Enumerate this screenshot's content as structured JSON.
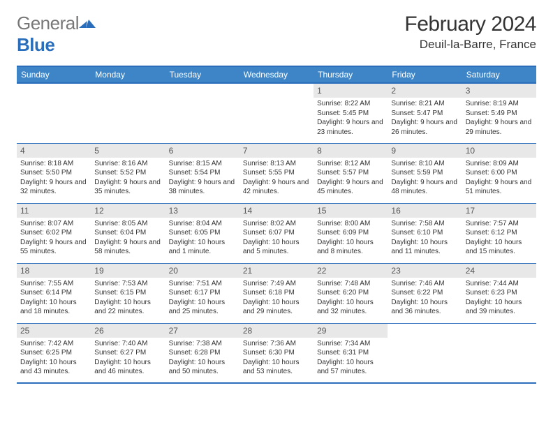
{
  "brand": {
    "gray": "General",
    "blue": "Blue"
  },
  "title": "February 2024",
  "location": "Deuil-la-Barre, France",
  "colors": {
    "header_bg": "#3d85c6",
    "header_border": "#2a6ebb",
    "daynum_bg": "#e8e8e8",
    "text": "#333333"
  },
  "day_headers": [
    "Sunday",
    "Monday",
    "Tuesday",
    "Wednesday",
    "Thursday",
    "Friday",
    "Saturday"
  ],
  "weeks": [
    [
      {
        "n": "",
        "sr": "",
        "ss": "",
        "dl": ""
      },
      {
        "n": "",
        "sr": "",
        "ss": "",
        "dl": ""
      },
      {
        "n": "",
        "sr": "",
        "ss": "",
        "dl": ""
      },
      {
        "n": "",
        "sr": "",
        "ss": "",
        "dl": ""
      },
      {
        "n": "1",
        "sr": "Sunrise: 8:22 AM",
        "ss": "Sunset: 5:45 PM",
        "dl": "Daylight: 9 hours and 23 minutes."
      },
      {
        "n": "2",
        "sr": "Sunrise: 8:21 AM",
        "ss": "Sunset: 5:47 PM",
        "dl": "Daylight: 9 hours and 26 minutes."
      },
      {
        "n": "3",
        "sr": "Sunrise: 8:19 AM",
        "ss": "Sunset: 5:49 PM",
        "dl": "Daylight: 9 hours and 29 minutes."
      }
    ],
    [
      {
        "n": "4",
        "sr": "Sunrise: 8:18 AM",
        "ss": "Sunset: 5:50 PM",
        "dl": "Daylight: 9 hours and 32 minutes."
      },
      {
        "n": "5",
        "sr": "Sunrise: 8:16 AM",
        "ss": "Sunset: 5:52 PM",
        "dl": "Daylight: 9 hours and 35 minutes."
      },
      {
        "n": "6",
        "sr": "Sunrise: 8:15 AM",
        "ss": "Sunset: 5:54 PM",
        "dl": "Daylight: 9 hours and 38 minutes."
      },
      {
        "n": "7",
        "sr": "Sunrise: 8:13 AM",
        "ss": "Sunset: 5:55 PM",
        "dl": "Daylight: 9 hours and 42 minutes."
      },
      {
        "n": "8",
        "sr": "Sunrise: 8:12 AM",
        "ss": "Sunset: 5:57 PM",
        "dl": "Daylight: 9 hours and 45 minutes."
      },
      {
        "n": "9",
        "sr": "Sunrise: 8:10 AM",
        "ss": "Sunset: 5:59 PM",
        "dl": "Daylight: 9 hours and 48 minutes."
      },
      {
        "n": "10",
        "sr": "Sunrise: 8:09 AM",
        "ss": "Sunset: 6:00 PM",
        "dl": "Daylight: 9 hours and 51 minutes."
      }
    ],
    [
      {
        "n": "11",
        "sr": "Sunrise: 8:07 AM",
        "ss": "Sunset: 6:02 PM",
        "dl": "Daylight: 9 hours and 55 minutes."
      },
      {
        "n": "12",
        "sr": "Sunrise: 8:05 AM",
        "ss": "Sunset: 6:04 PM",
        "dl": "Daylight: 9 hours and 58 minutes."
      },
      {
        "n": "13",
        "sr": "Sunrise: 8:04 AM",
        "ss": "Sunset: 6:05 PM",
        "dl": "Daylight: 10 hours and 1 minute."
      },
      {
        "n": "14",
        "sr": "Sunrise: 8:02 AM",
        "ss": "Sunset: 6:07 PM",
        "dl": "Daylight: 10 hours and 5 minutes."
      },
      {
        "n": "15",
        "sr": "Sunrise: 8:00 AM",
        "ss": "Sunset: 6:09 PM",
        "dl": "Daylight: 10 hours and 8 minutes."
      },
      {
        "n": "16",
        "sr": "Sunrise: 7:58 AM",
        "ss": "Sunset: 6:10 PM",
        "dl": "Daylight: 10 hours and 11 minutes."
      },
      {
        "n": "17",
        "sr": "Sunrise: 7:57 AM",
        "ss": "Sunset: 6:12 PM",
        "dl": "Daylight: 10 hours and 15 minutes."
      }
    ],
    [
      {
        "n": "18",
        "sr": "Sunrise: 7:55 AM",
        "ss": "Sunset: 6:14 PM",
        "dl": "Daylight: 10 hours and 18 minutes."
      },
      {
        "n": "19",
        "sr": "Sunrise: 7:53 AM",
        "ss": "Sunset: 6:15 PM",
        "dl": "Daylight: 10 hours and 22 minutes."
      },
      {
        "n": "20",
        "sr": "Sunrise: 7:51 AM",
        "ss": "Sunset: 6:17 PM",
        "dl": "Daylight: 10 hours and 25 minutes."
      },
      {
        "n": "21",
        "sr": "Sunrise: 7:49 AM",
        "ss": "Sunset: 6:18 PM",
        "dl": "Daylight: 10 hours and 29 minutes."
      },
      {
        "n": "22",
        "sr": "Sunrise: 7:48 AM",
        "ss": "Sunset: 6:20 PM",
        "dl": "Daylight: 10 hours and 32 minutes."
      },
      {
        "n": "23",
        "sr": "Sunrise: 7:46 AM",
        "ss": "Sunset: 6:22 PM",
        "dl": "Daylight: 10 hours and 36 minutes."
      },
      {
        "n": "24",
        "sr": "Sunrise: 7:44 AM",
        "ss": "Sunset: 6:23 PM",
        "dl": "Daylight: 10 hours and 39 minutes."
      }
    ],
    [
      {
        "n": "25",
        "sr": "Sunrise: 7:42 AM",
        "ss": "Sunset: 6:25 PM",
        "dl": "Daylight: 10 hours and 43 minutes."
      },
      {
        "n": "26",
        "sr": "Sunrise: 7:40 AM",
        "ss": "Sunset: 6:27 PM",
        "dl": "Daylight: 10 hours and 46 minutes."
      },
      {
        "n": "27",
        "sr": "Sunrise: 7:38 AM",
        "ss": "Sunset: 6:28 PM",
        "dl": "Daylight: 10 hours and 50 minutes."
      },
      {
        "n": "28",
        "sr": "Sunrise: 7:36 AM",
        "ss": "Sunset: 6:30 PM",
        "dl": "Daylight: 10 hours and 53 minutes."
      },
      {
        "n": "29",
        "sr": "Sunrise: 7:34 AM",
        "ss": "Sunset: 6:31 PM",
        "dl": "Daylight: 10 hours and 57 minutes."
      },
      {
        "n": "",
        "sr": "",
        "ss": "",
        "dl": ""
      },
      {
        "n": "",
        "sr": "",
        "ss": "",
        "dl": ""
      }
    ]
  ]
}
